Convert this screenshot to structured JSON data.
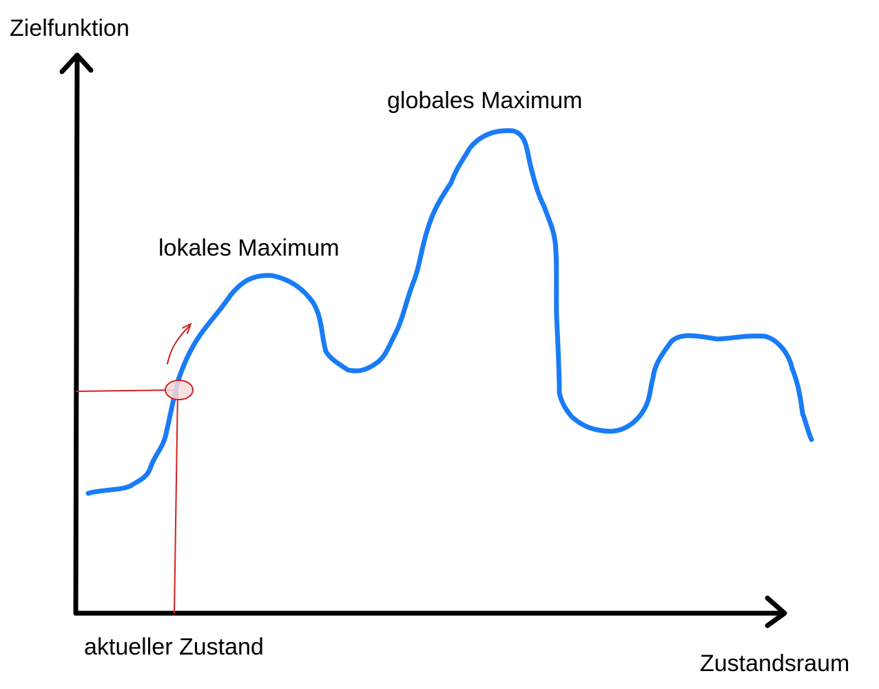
{
  "labels": {
    "y_axis": "Zielfunktion",
    "x_axis": "Zustandsraum",
    "current_state": "aktueller Zustand",
    "local_maximum": "lokales Maximum",
    "global_maximum": "globales Maximum"
  },
  "colors": {
    "curve": "#1a7cf5",
    "axes": "#000000",
    "marker": "#d42020",
    "marker_fill": "#f6dada"
  }
}
